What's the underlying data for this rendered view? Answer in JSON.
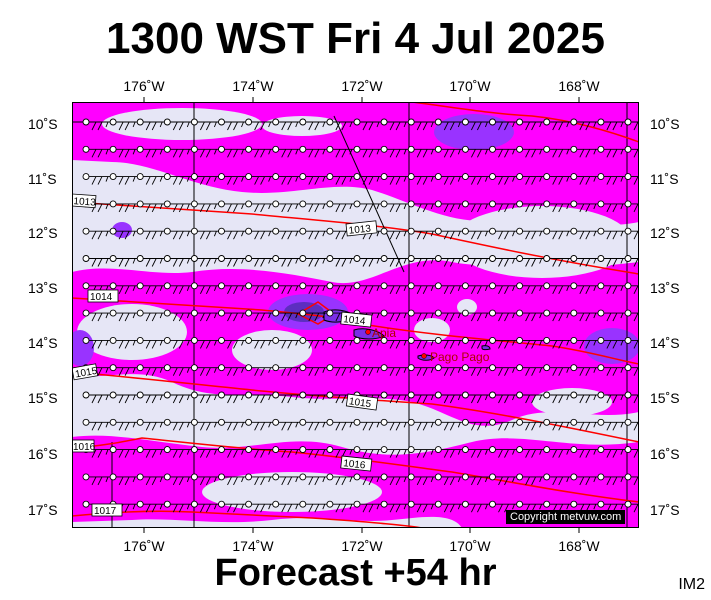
{
  "title": "1300 WST Fri 4 Jul 2025",
  "footer": "Forecast +54 hr",
  "code": "IM2",
  "copyright": "Copyright metvuw.com",
  "lon_labels": [
    "176˚W",
    "174˚W",
    "172˚W",
    "170˚W",
    "168˚W"
  ],
  "lat_labels": [
    "10˚S",
    "11˚S",
    "12˚S",
    "13˚S",
    "14˚S",
    "15˚S",
    "16˚S",
    "17˚S"
  ],
  "places": [
    {
      "name": "Apia"
    },
    {
      "name": "Pago Pago"
    }
  ],
  "isobar_labels": [
    "1013",
    "1013",
    "1014",
    "1014",
    "1015",
    "1015",
    "1016",
    "1016",
    "1017"
  ],
  "colors": {
    "background_light": "#e6e6f6",
    "magenta": "#ff00ff",
    "violet": "#9933ff",
    "purple": "#7a2ee6",
    "isobar": "#ff0000",
    "coast": "#000000"
  }
}
